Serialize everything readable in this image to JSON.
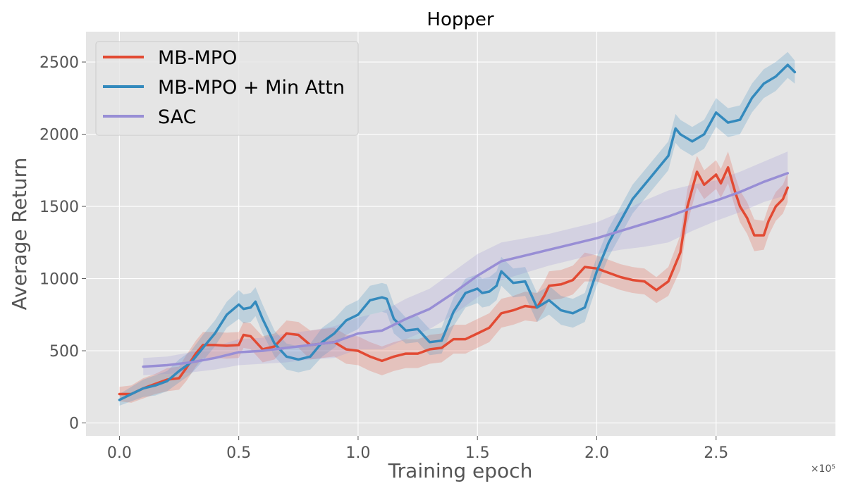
{
  "chart_data": {
    "type": "line",
    "title": "Hopper",
    "xlabel": "Training epoch",
    "ylabel": "Average Return",
    "x_offset_label": "×10⁵",
    "xlim": [
      -0.14,
      3.0
    ],
    "ylim": [
      -90,
      2710
    ],
    "xticks": [
      0.0,
      0.5,
      1.0,
      1.5,
      2.0,
      2.5
    ],
    "xtick_labels": [
      "0.0",
      "0.5",
      "1.0",
      "1.5",
      "2.0",
      "2.5"
    ],
    "yticks": [
      0,
      500,
      1000,
      1500,
      2000,
      2500
    ],
    "ytick_labels": [
      "0",
      "500",
      "1000",
      "1500",
      "2000",
      "2500"
    ],
    "grid": true,
    "legend_position": "top-left",
    "series": [
      {
        "name": "MB-MPO",
        "color": "#e24a33",
        "x": [
          0.0,
          0.05,
          0.1,
          0.15,
          0.2,
          0.25,
          0.28,
          0.32,
          0.35,
          0.4,
          0.45,
          0.5,
          0.52,
          0.55,
          0.6,
          0.65,
          0.7,
          0.75,
          0.8,
          0.85,
          0.9,
          0.95,
          1.0,
          1.05,
          1.1,
          1.15,
          1.2,
          1.25,
          1.3,
          1.35,
          1.4,
          1.45,
          1.5,
          1.55,
          1.6,
          1.65,
          1.7,
          1.75,
          1.78,
          1.8,
          1.85,
          1.9,
          1.95,
          2.0,
          2.05,
          2.1,
          2.15,
          2.2,
          2.25,
          2.3,
          2.35,
          2.38,
          2.42,
          2.45,
          2.5,
          2.52,
          2.55,
          2.58,
          2.6,
          2.63,
          2.66,
          2.7,
          2.72,
          2.75,
          2.78,
          2.8
        ],
        "values": [
          200,
          200,
          240,
          270,
          300,
          310,
          380,
          480,
          540,
          540,
          535,
          540,
          610,
          600,
          510,
          530,
          620,
          610,
          540,
          550,
          560,
          510,
          500,
          460,
          430,
          460,
          480,
          480,
          510,
          520,
          580,
          580,
          620,
          660,
          760,
          780,
          810,
          800,
          880,
          950,
          960,
          990,
          1080,
          1070,
          1040,
          1010,
          990,
          980,
          920,
          980,
          1180,
          1500,
          1740,
          1650,
          1720,
          1660,
          1770,
          1600,
          1500,
          1420,
          1300,
          1300,
          1400,
          1500,
          1550,
          1630
        ],
        "band": [
          50,
          60,
          70,
          70,
          80,
          80,
          90,
          90,
          90,
          90,
          90,
          90,
          90,
          90,
          90,
          90,
          90,
          90,
          100,
          100,
          100,
          100,
          100,
          100,
          100,
          100,
          100,
          100,
          100,
          100,
          100,
          100,
          100,
          100,
          100,
          100,
          100,
          100,
          100,
          100,
          100,
          100,
          100,
          90,
          90,
          90,
          90,
          90,
          90,
          100,
          120,
          120,
          110,
          100,
          100,
          100,
          110,
          110,
          110,
          110,
          110,
          100,
          100,
          100,
          100,
          100
        ]
      },
      {
        "name": "MB-MPO + Min Attn",
        "color": "#348abd",
        "x": [
          0.0,
          0.05,
          0.1,
          0.15,
          0.2,
          0.25,
          0.3,
          0.35,
          0.4,
          0.45,
          0.5,
          0.52,
          0.55,
          0.57,
          0.6,
          0.65,
          0.7,
          0.75,
          0.8,
          0.85,
          0.9,
          0.95,
          1.0,
          1.05,
          1.1,
          1.12,
          1.15,
          1.2,
          1.25,
          1.3,
          1.35,
          1.4,
          1.45,
          1.5,
          1.52,
          1.55,
          1.58,
          1.6,
          1.65,
          1.7,
          1.75,
          1.8,
          1.85,
          1.9,
          1.95,
          2.0,
          2.05,
          2.1,
          2.15,
          2.2,
          2.25,
          2.3,
          2.33,
          2.35,
          2.4,
          2.45,
          2.5,
          2.55,
          2.6,
          2.65,
          2.7,
          2.75,
          2.8,
          2.83
        ],
        "values": [
          160,
          200,
          240,
          260,
          290,
          360,
          420,
          520,
          620,
          750,
          820,
          790,
          800,
          840,
          720,
          550,
          460,
          440,
          460,
          560,
          620,
          710,
          750,
          850,
          870,
          860,
          720,
          640,
          650,
          560,
          570,
          770,
          900,
          930,
          900,
          910,
          950,
          1050,
          970,
          980,
          800,
          850,
          780,
          760,
          800,
          1050,
          1250,
          1400,
          1550,
          1650,
          1750,
          1850,
          2040,
          2000,
          1950,
          2000,
          2150,
          2080,
          2100,
          2250,
          2350,
          2400,
          2480,
          2430
        ],
        "band": [
          40,
          50,
          60,
          70,
          70,
          80,
          80,
          90,
          90,
          90,
          100,
          100,
          100,
          100,
          100,
          90,
          90,
          90,
          90,
          100,
          100,
          100,
          100,
          100,
          100,
          100,
          100,
          90,
          90,
          90,
          90,
          100,
          100,
          100,
          100,
          100,
          100,
          100,
          100,
          100,
          100,
          100,
          100,
          100,
          100,
          100,
          100,
          100,
          100,
          100,
          100,
          100,
          100,
          100,
          100,
          100,
          100,
          100,
          100,
          100,
          100,
          100,
          90,
          80
        ]
      },
      {
        "name": "SAC",
        "color": "#988ed5",
        "x": [
          0.1,
          0.2,
          0.3,
          0.4,
          0.5,
          0.6,
          0.7,
          0.8,
          0.9,
          1.0,
          1.1,
          1.2,
          1.3,
          1.4,
          1.5,
          1.6,
          1.7,
          1.8,
          1.9,
          2.0,
          2.1,
          2.2,
          2.3,
          2.4,
          2.5,
          2.6,
          2.7,
          2.8
        ],
        "values": [
          390,
          400,
          420,
          450,
          490,
          500,
          520,
          540,
          560,
          620,
          640,
          720,
          790,
          900,
          1020,
          1120,
          1160,
          1200,
          1240,
          1280,
          1330,
          1380,
          1430,
          1490,
          1540,
          1600,
          1670,
          1730
        ],
        "band": [
          60,
          60,
          70,
          80,
          90,
          90,
          100,
          100,
          110,
          110,
          130,
          140,
          140,
          150,
          150,
          130,
          120,
          110,
          110,
          110,
          130,
          160,
          180,
          160,
          140,
          140,
          140,
          150
        ]
      }
    ]
  }
}
